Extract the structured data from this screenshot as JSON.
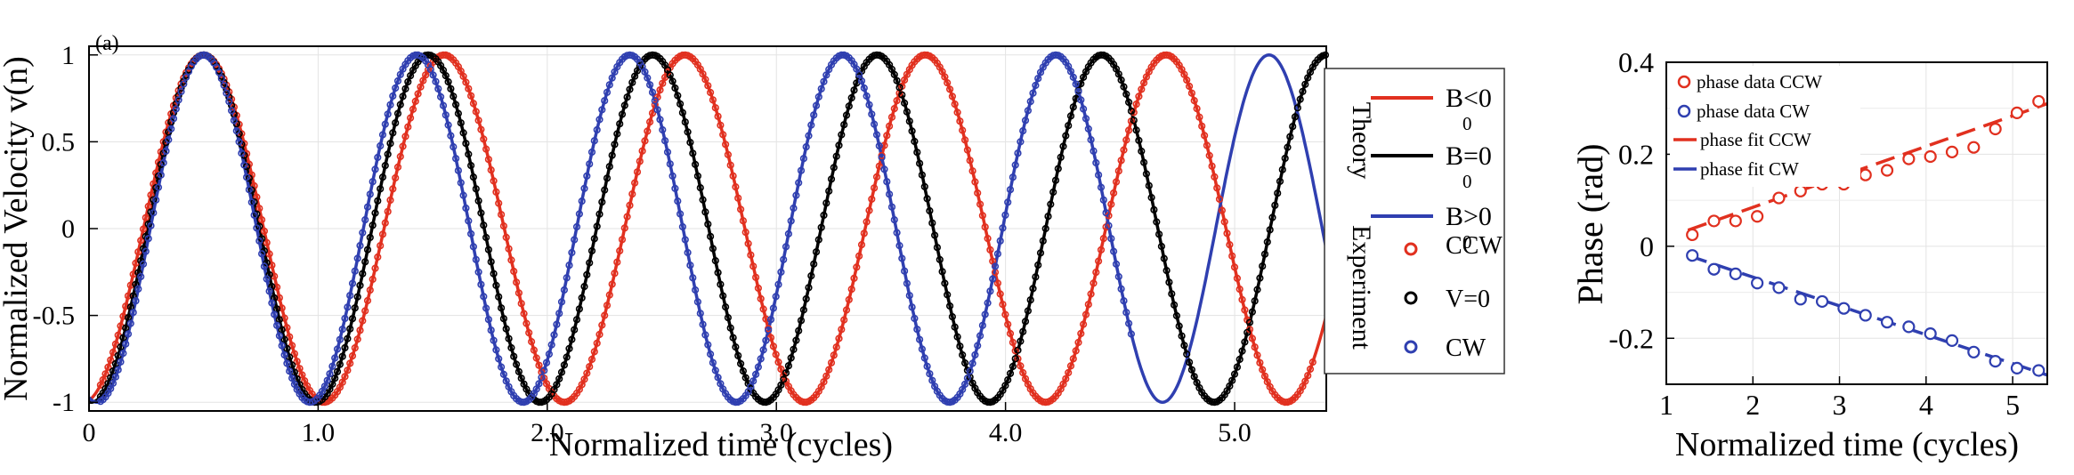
{
  "panel_label": "(a)",
  "legend": {
    "theory_title": "Theory",
    "experiment_title": "Experiment",
    "entries": [
      {
        "key": "bneg",
        "text_main": "B<0",
        "text_sub": "0",
        "color": "#e1301f"
      },
      {
        "key": "bzero",
        "text_main": "B=0",
        "text_sub": "0",
        "color": "#000000"
      },
      {
        "key": "bpos",
        "text_main": "B>0",
        "text_sub": "0",
        "color": "#2f3fb0"
      },
      {
        "key": "ccw",
        "text": "CCW",
        "color": "#e1301f"
      },
      {
        "key": "v0",
        "text": "V=0",
        "color": "#000000"
      },
      {
        "key": "cw",
        "text": "CW",
        "color": "#2f3fb0"
      }
    ]
  },
  "phase_legend": [
    {
      "text": "phase data CCW",
      "color": "#e1301f",
      "style": "marker"
    },
    {
      "text": "phase data CW",
      "color": "#2f3fb0",
      "style": "marker"
    },
    {
      "text": "phase fit CCW",
      "color": "#e1301f",
      "style": "dash"
    },
    {
      "text": "phase fit CW",
      "color": "#2f3fb0",
      "style": "dash"
    }
  ],
  "chart_data": [
    {
      "type": "line",
      "xlabel": "Normalized time (cycles)",
      "ylabel": "Normalized Velocity v(n)",
      "xlim": [
        0,
        5.4
      ],
      "ylim": [
        -1.05,
        1.05
      ],
      "xticks": [
        0,
        1,
        2,
        3,
        4,
        5
      ],
      "xtick_labels": [
        "0",
        "1.0",
        "2.0",
        "3.0",
        "4.0",
        "5.0"
      ],
      "yticks": [
        1,
        0.5,
        0,
        -0.5,
        -1
      ],
      "ytick_labels": [
        "1",
        "0.5",
        "0",
        "-0.5",
        "-1"
      ],
      "grid": true,
      "legend_position": "right",
      "series": [
        {
          "name": "B0<0",
          "group": "Theory",
          "period": 1.05,
          "phase0": 0.5,
          "color": "#e1301f"
        },
        {
          "name": "B0=0",
          "group": "Theory",
          "period": 0.98,
          "phase0": 0.5,
          "color": "#000000"
        },
        {
          "name": "B0>0",
          "group": "Theory",
          "period": 0.93,
          "phase0": 0.5,
          "color": "#2f3fb0"
        },
        {
          "name": "CCW",
          "group": "Experiment",
          "period": 1.05,
          "phase0": 0.5,
          "color": "#e1301f",
          "x_end": 5.35
        },
        {
          "name": "V=0",
          "group": "Experiment",
          "period": 0.98,
          "phase0": 0.5,
          "color": "#000000",
          "x_end": 5.4
        },
        {
          "name": "CW",
          "group": "Experiment",
          "period": 0.93,
          "phase0": 0.5,
          "color": "#2f3fb0",
          "x_end": 4.55
        }
      ]
    },
    {
      "type": "scatter",
      "xlabel": "Normalized time (cycles)",
      "ylabel": "Phase (rad)",
      "xlim": [
        1,
        5.4
      ],
      "ylim": [
        -0.3,
        0.4
      ],
      "xticks": [
        1,
        2,
        3,
        4,
        5
      ],
      "xtick_labels": [
        "1",
        "2",
        "3",
        "4",
        "5"
      ],
      "yticks": [
        0.4,
        0.2,
        0,
        -0.2
      ],
      "ytick_labels": [
        "0.4",
        "0.2",
        "0",
        "-0.2"
      ],
      "grid": true,
      "legend_position": "top-left",
      "series": [
        {
          "name": "phase data CCW",
          "color": "#e1301f",
          "x": [
            1.3,
            1.55,
            1.8,
            2.05,
            2.3,
            2.55,
            2.8,
            3.05,
            3.3,
            3.55,
            3.8,
            4.05,
            4.3,
            4.55,
            4.8,
            5.05,
            5.3
          ],
          "y": [
            0.025,
            0.055,
            0.055,
            0.065,
            0.105,
            0.12,
            0.135,
            0.135,
            0.155,
            0.165,
            0.19,
            0.195,
            0.205,
            0.215,
            0.255,
            0.29,
            0.315
          ]
        },
        {
          "name": "phase data CW",
          "color": "#2f3fb0",
          "x": [
            1.3,
            1.55,
            1.8,
            2.05,
            2.3,
            2.55,
            2.8,
            3.05,
            3.3,
            3.55,
            3.8,
            4.05,
            4.3,
            4.55,
            4.8,
            5.05,
            5.3
          ],
          "y": [
            -0.02,
            -0.05,
            -0.06,
            -0.08,
            -0.09,
            -0.115,
            -0.12,
            -0.135,
            -0.15,
            -0.165,
            -0.175,
            -0.19,
            -0.205,
            -0.23,
            -0.25,
            -0.265,
            -0.27
          ]
        },
        {
          "name": "phase fit CCW",
          "color": "#e1301f",
          "fit": {
            "x": [
              1.25,
              5.4
            ],
            "y": [
              0.035,
              0.31
            ]
          }
        },
        {
          "name": "phase fit CW",
          "color": "#2f3fb0",
          "fit": {
            "x": [
              1.25,
              5.4
            ],
            "y": [
              -0.02,
              -0.28
            ]
          }
        }
      ]
    }
  ]
}
